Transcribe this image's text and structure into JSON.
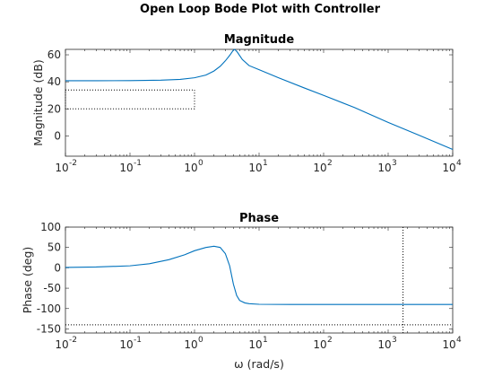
{
  "figure_title": "Open Loop Bode Plot with Controller",
  "colors": {
    "line": "#0072bd",
    "axes": "#262626",
    "background": "#ffffff"
  },
  "chart_data": [
    {
      "type": "line",
      "title": "Magnitude",
      "xlabel": "",
      "ylabel": "Magnitude (dB)",
      "xscale": "log",
      "xlim": [
        0.01,
        10000
      ],
      "ylim": [
        -15,
        64
      ],
      "x_ticks": [
        {
          "value": 0.01,
          "base": "10",
          "exp": "-2"
        },
        {
          "value": 0.1,
          "base": "10",
          "exp": "-1"
        },
        {
          "value": 1,
          "base": "10",
          "exp": "0"
        },
        {
          "value": 10,
          "base": "10",
          "exp": "1"
        },
        {
          "value": 100,
          "base": "10",
          "exp": "2"
        },
        {
          "value": 1000,
          "base": "10",
          "exp": "3"
        },
        {
          "value": 10000,
          "base": "10",
          "exp": "4"
        }
      ],
      "y_ticks": [
        {
          "value": 60,
          "label": "60"
        },
        {
          "value": 40,
          "label": "40"
        },
        {
          "value": 20,
          "label": "20"
        },
        {
          "value": 0,
          "label": "0"
        }
      ],
      "grid": false,
      "series": [
        {
          "x": [
            0.01,
            0.03,
            0.1,
            0.3,
            0.6,
            1.0,
            1.5,
            2.0,
            2.5,
            3.0,
            3.5,
            4.0,
            4.2,
            4.6,
            5.5,
            7,
            10,
            20,
            50,
            100,
            300,
            1000,
            3000,
            10000
          ],
          "y": [
            40.8,
            40.8,
            40.9,
            41.2,
            41.8,
            43.0,
            45.0,
            48.0,
            51.5,
            55.5,
            59.5,
            63.5,
            64.5,
            62.0,
            56.5,
            52.0,
            49.0,
            43.0,
            35.5,
            30.0,
            21.0,
            10.0,
            0.5,
            -10.0
          ]
        }
      ],
      "annotations": [
        {
          "kind": "dotted-box",
          "x": [
            0.01,
            1.0
          ],
          "y": [
            20,
            34
          ]
        }
      ]
    },
    {
      "type": "line",
      "title": "Phase",
      "xlabel": "ω (rad/s)",
      "ylabel": "Phase (deg)",
      "xscale": "log",
      "xlim": [
        0.01,
        10000
      ],
      "ylim": [
        -160,
        100
      ],
      "x_ticks": [
        {
          "value": 0.01,
          "base": "10",
          "exp": "-2"
        },
        {
          "value": 0.1,
          "base": "10",
          "exp": "-1"
        },
        {
          "value": 1,
          "base": "10",
          "exp": "0"
        },
        {
          "value": 10,
          "base": "10",
          "exp": "1"
        },
        {
          "value": 100,
          "base": "10",
          "exp": "2"
        },
        {
          "value": 1000,
          "base": "10",
          "exp": "3"
        },
        {
          "value": 10000,
          "base": "10",
          "exp": "4"
        }
      ],
      "y_ticks": [
        {
          "value": 100,
          "label": "100"
        },
        {
          "value": 50,
          "label": "50"
        },
        {
          "value": 0,
          "label": "0"
        },
        {
          "value": -50,
          "label": "-50"
        },
        {
          "value": -100,
          "label": "-100"
        },
        {
          "value": -150,
          "label": "-150"
        }
      ],
      "grid": false,
      "series": [
        {
          "x": [
            0.01,
            0.03,
            0.1,
            0.2,
            0.4,
            0.7,
            1.0,
            1.5,
            2.0,
            2.5,
            3.0,
            3.5,
            4.0,
            4.5,
            5.0,
            6.0,
            7.0,
            10,
            30,
            100,
            1000,
            10000
          ],
          "y": [
            1,
            2,
            5,
            10,
            20,
            32,
            42,
            50,
            53,
            50,
            35,
            5,
            -40,
            -68,
            -80,
            -86,
            -88,
            -89.5,
            -90,
            -90,
            -90,
            -90
          ]
        }
      ],
      "annotations": [
        {
          "kind": "dotted-hline",
          "y": -140
        },
        {
          "kind": "dotted-vline",
          "x": 1700
        }
      ]
    }
  ]
}
